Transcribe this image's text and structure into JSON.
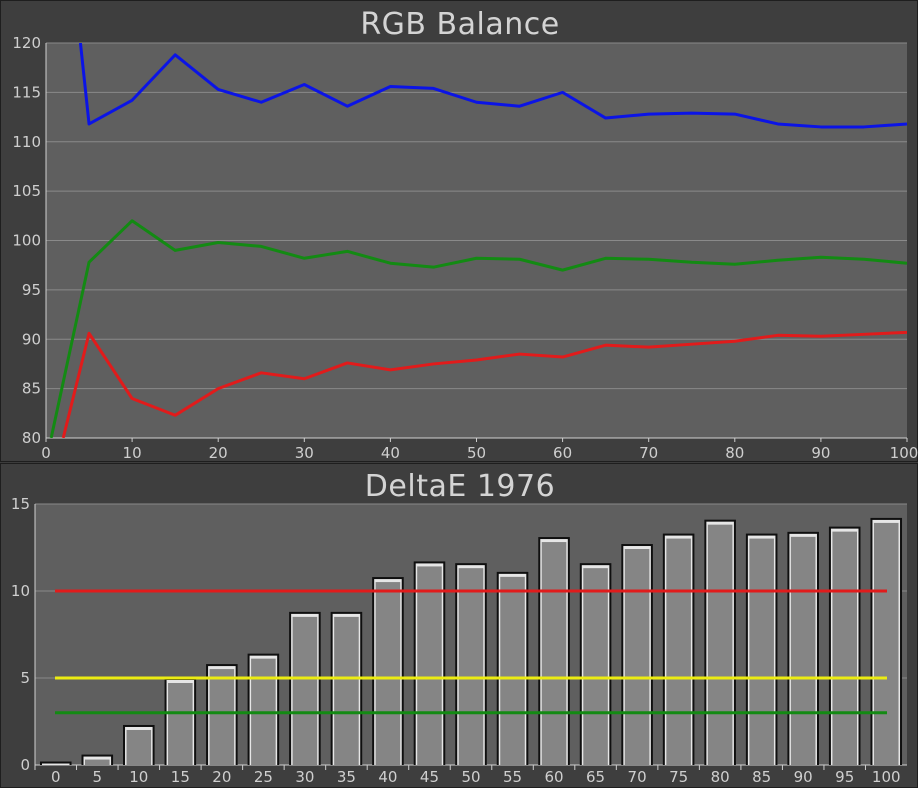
{
  "chart_data": [
    {
      "type": "line",
      "title": "RGB Balance",
      "x": [
        0,
        5,
        10,
        15,
        20,
        25,
        30,
        35,
        40,
        45,
        50,
        55,
        60,
        65,
        70,
        75,
        80,
        85,
        90,
        95,
        100
      ],
      "xlim": [
        0,
        100
      ],
      "ylim": [
        80,
        120
      ],
      "xticks": [
        "0",
        "10",
        "20",
        "30",
        "40",
        "50",
        "60",
        "70",
        "80",
        "90",
        "100"
      ],
      "yticks": [
        "80",
        "85",
        "90",
        "95",
        "100",
        "105",
        "110",
        "115",
        "120"
      ],
      "grid": true,
      "series": [
        {
          "color": "#0b14e6",
          "values": [
            null,
            111.8,
            114.2,
            118.8,
            115.3,
            114.0,
            115.8,
            113.6,
            115.6,
            115.4,
            114.0,
            113.6,
            115.0,
            112.4,
            112.8,
            112.9,
            112.8,
            111.8,
            111.5,
            111.5,
            111.8
          ],
          "lead": [
            4,
            120
          ]
        },
        {
          "color": "#138a13",
          "values": [
            null,
            97.8,
            102.0,
            99.0,
            99.8,
            99.4,
            98.2,
            98.9,
            97.7,
            97.3,
            98.2,
            98.1,
            97.0,
            98.2,
            98.1,
            97.8,
            97.6,
            98.0,
            98.3,
            98.1,
            97.7
          ],
          "lead": [
            0.6,
            80
          ]
        },
        {
          "color": "#e11b1b",
          "values": [
            null,
            90.6,
            84.0,
            82.3,
            85.0,
            86.6,
            86.0,
            87.6,
            86.9,
            87.5,
            87.9,
            88.5,
            88.2,
            89.4,
            89.2,
            89.5,
            89.8,
            90.4,
            90.3,
            90.5,
            90.7
          ],
          "lead": [
            2.0,
            80
          ]
        }
      ]
    },
    {
      "type": "bar",
      "title": "DeltaE 1976",
      "categories": [
        "0",
        "5",
        "10",
        "15",
        "20",
        "25",
        "30",
        "35",
        "40",
        "45",
        "50",
        "55",
        "60",
        "65",
        "70",
        "75",
        "80",
        "85",
        "90",
        "95",
        "100"
      ],
      "values": [
        0.2,
        0.6,
        2.3,
        5.0,
        5.8,
        6.4,
        8.8,
        8.8,
        10.8,
        11.7,
        11.6,
        11.1,
        13.1,
        11.6,
        12.7,
        13.3,
        14.1,
        13.3,
        13.4,
        13.7,
        14.2
      ],
      "ylim": [
        0,
        15
      ],
      "yticks": [
        "0",
        "5",
        "10",
        "15"
      ],
      "thresholds": [
        {
          "value": 10,
          "color": "#e11b1b"
        },
        {
          "value": 5,
          "color": "#ecec12"
        },
        {
          "value": 3,
          "color": "#138a13"
        }
      ]
    }
  ]
}
